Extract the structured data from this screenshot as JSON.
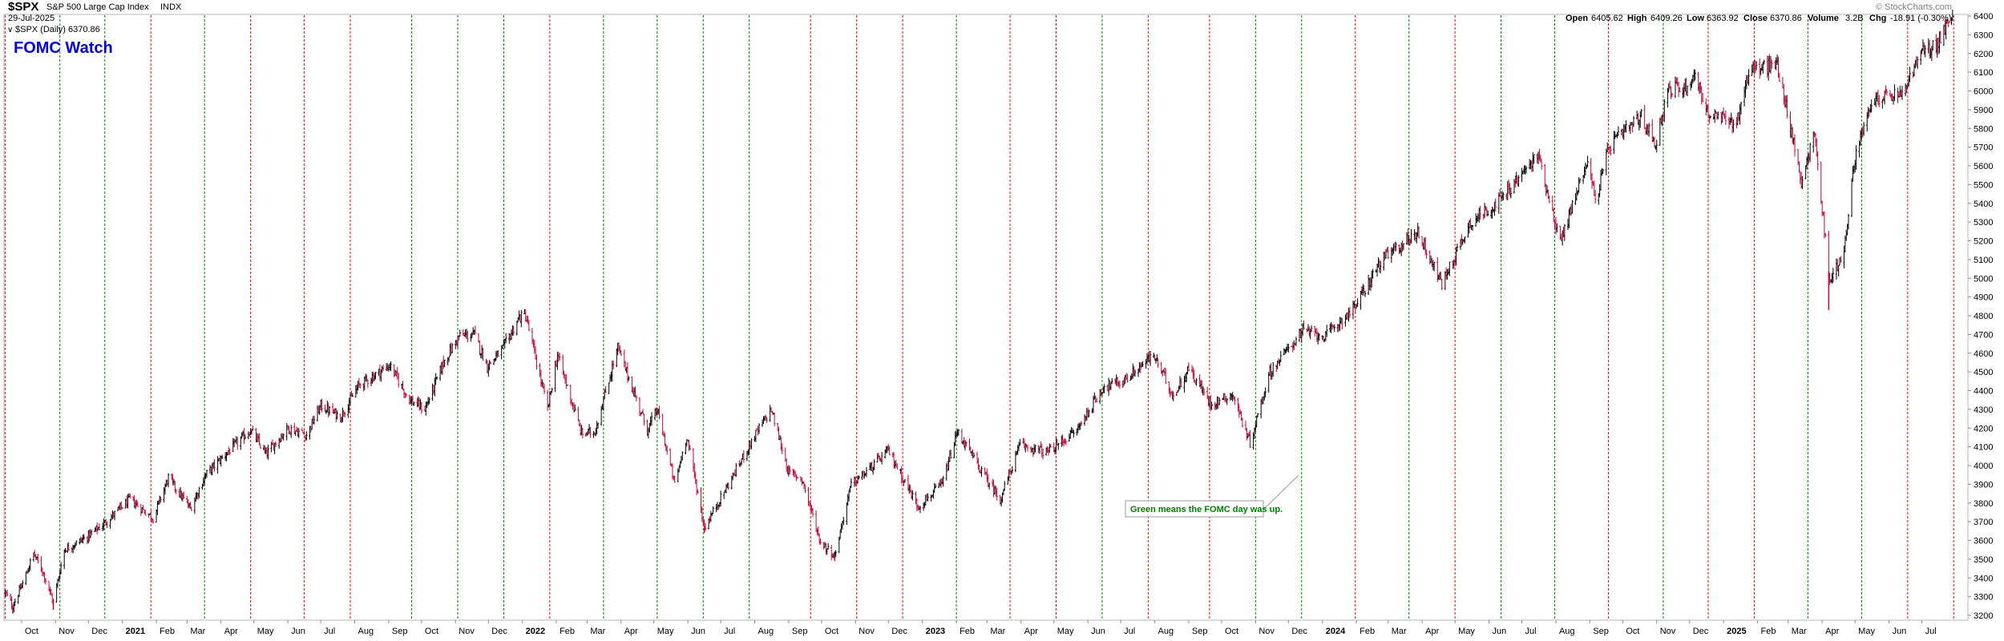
{
  "header": {
    "symbol": "$SPX",
    "description": "S&P 500 Large Cap Index",
    "exchange": "INDX",
    "date": "29-Jul-2025",
    "legend": "$SPX (Daily) 6370.86",
    "source": "© StockCharts.com",
    "ohlc": [
      {
        "label": "Open",
        "value": "6405.62"
      },
      {
        "label": "High",
        "value": "6409.26"
      },
      {
        "label": "Low",
        "value": "6363.92"
      },
      {
        "label": "Close",
        "value": "6370.86"
      },
      {
        "label": "Volume",
        "value": "3.2B"
      },
      {
        "label": "Chg",
        "value": "-18.91 (-0.30%)"
      }
    ]
  },
  "annotation": {
    "title": "FOMC Watch",
    "note": "Green means the FOMC day was up."
  },
  "colors": {
    "up_candle": "#000000",
    "down_candle": "#cc0033",
    "fomc_up": "#008000",
    "fomc_down": "#ff0000",
    "title": "#0000ee",
    "note_text": "#008000"
  },
  "chart_data": {
    "type": "line",
    "style": "daily OHLC price bars (black = up day, red = down day) with vertical dashed FOMC meeting lines",
    "ylim": [
      3200,
      6400
    ],
    "y_axis_position": "right",
    "y_ticks": [
      3200,
      3300,
      3400,
      3500,
      3600,
      3700,
      3800,
      3900,
      4000,
      4100,
      4200,
      4300,
      4400,
      4500,
      4600,
      4700,
      4800,
      4900,
      5000,
      5100,
      5200,
      5300,
      5400,
      5500,
      5600,
      5700,
      5800,
      5900,
      6000,
      6100,
      6200,
      6300,
      6400
    ],
    "x_range": [
      "2020-09-15",
      "2025-08-12"
    ],
    "x_ticks": [
      {
        "label": "Oct",
        "date": "2020-10-01",
        "year": false
      },
      {
        "label": "Nov",
        "date": "2020-11-01",
        "year": false
      },
      {
        "label": "Dec",
        "date": "2020-12-01",
        "year": false
      },
      {
        "label": "2021",
        "date": "2021-01-01",
        "year": true
      },
      {
        "label": "Feb",
        "date": "2021-02-01",
        "year": false
      },
      {
        "label": "Mar",
        "date": "2021-03-01",
        "year": false
      },
      {
        "label": "Apr",
        "date": "2021-04-01",
        "year": false
      },
      {
        "label": "May",
        "date": "2021-05-01",
        "year": false
      },
      {
        "label": "Jun",
        "date": "2021-06-01",
        "year": false
      },
      {
        "label": "Jul",
        "date": "2021-07-01",
        "year": false
      },
      {
        "label": "Aug",
        "date": "2021-08-01",
        "year": false
      },
      {
        "label": "Sep",
        "date": "2021-09-01",
        "year": false
      },
      {
        "label": "Oct",
        "date": "2021-10-01",
        "year": false
      },
      {
        "label": "Nov",
        "date": "2021-11-01",
        "year": false
      },
      {
        "label": "Dec",
        "date": "2021-12-01",
        "year": false
      },
      {
        "label": "2022",
        "date": "2022-01-01",
        "year": true
      },
      {
        "label": "Feb",
        "date": "2022-02-01",
        "year": false
      },
      {
        "label": "Mar",
        "date": "2022-03-01",
        "year": false
      },
      {
        "label": "Apr",
        "date": "2022-04-01",
        "year": false
      },
      {
        "label": "May",
        "date": "2022-05-01",
        "year": false
      },
      {
        "label": "Jun",
        "date": "2022-06-01",
        "year": false
      },
      {
        "label": "Jul",
        "date": "2022-07-01",
        "year": false
      },
      {
        "label": "Aug",
        "date": "2022-08-01",
        "year": false
      },
      {
        "label": "Sep",
        "date": "2022-09-01",
        "year": false
      },
      {
        "label": "Oct",
        "date": "2022-10-01",
        "year": false
      },
      {
        "label": "Nov",
        "date": "2022-11-01",
        "year": false
      },
      {
        "label": "Dec",
        "date": "2022-12-01",
        "year": false
      },
      {
        "label": "2023",
        "date": "2023-01-01",
        "year": true
      },
      {
        "label": "Feb",
        "date": "2023-02-01",
        "year": false
      },
      {
        "label": "Mar",
        "date": "2023-03-01",
        "year": false
      },
      {
        "label": "Apr",
        "date": "2023-04-01",
        "year": false
      },
      {
        "label": "May",
        "date": "2023-05-01",
        "year": false
      },
      {
        "label": "Jun",
        "date": "2023-06-01",
        "year": false
      },
      {
        "label": "Jul",
        "date": "2023-07-01",
        "year": false
      },
      {
        "label": "Aug",
        "date": "2023-08-01",
        "year": false
      },
      {
        "label": "Sep",
        "date": "2023-09-01",
        "year": false
      },
      {
        "label": "Oct",
        "date": "2023-10-01",
        "year": false
      },
      {
        "label": "Nov",
        "date": "2023-11-01",
        "year": false
      },
      {
        "label": "Dec",
        "date": "2023-12-01",
        "year": false
      },
      {
        "label": "2024",
        "date": "2024-01-01",
        "year": true
      },
      {
        "label": "Feb",
        "date": "2024-02-01",
        "year": false
      },
      {
        "label": "Mar",
        "date": "2024-03-01",
        "year": false
      },
      {
        "label": "Apr",
        "date": "2024-04-01",
        "year": false
      },
      {
        "label": "May",
        "date": "2024-05-01",
        "year": false
      },
      {
        "label": "Jun",
        "date": "2024-06-01",
        "year": false
      },
      {
        "label": "Jul",
        "date": "2024-07-01",
        "year": false
      },
      {
        "label": "Aug",
        "date": "2024-08-01",
        "year": false
      },
      {
        "label": "Sep",
        "date": "2024-09-01",
        "year": false
      },
      {
        "label": "Oct",
        "date": "2024-10-01",
        "year": false
      },
      {
        "label": "Nov",
        "date": "2024-11-01",
        "year": false
      },
      {
        "label": "Dec",
        "date": "2024-12-01",
        "year": false
      },
      {
        "label": "2025",
        "date": "2025-01-01",
        "year": true
      },
      {
        "label": "Feb",
        "date": "2025-02-01",
        "year": false
      },
      {
        "label": "Mar",
        "date": "2025-03-01",
        "year": false
      },
      {
        "label": "Apr",
        "date": "2025-04-01",
        "year": false
      },
      {
        "label": "May",
        "date": "2025-05-01",
        "year": false
      },
      {
        "label": "Jun",
        "date": "2025-06-01",
        "year": false
      },
      {
        "label": "Jul",
        "date": "2025-07-01",
        "year": false
      }
    ],
    "fomc_days": [
      {
        "date": "2020-09-16",
        "up": false
      },
      {
        "date": "2020-11-05",
        "up": true
      },
      {
        "date": "2020-12-16",
        "up": true
      },
      {
        "date": "2021-01-27",
        "up": false
      },
      {
        "date": "2021-03-17",
        "up": true
      },
      {
        "date": "2021-04-28",
        "up": false
      },
      {
        "date": "2021-06-16",
        "up": false
      },
      {
        "date": "2021-07-28",
        "up": false
      },
      {
        "date": "2021-09-22",
        "up": true
      },
      {
        "date": "2021-11-03",
        "up": true
      },
      {
        "date": "2021-12-15",
        "up": true
      },
      {
        "date": "2022-01-26",
        "up": false
      },
      {
        "date": "2022-03-16",
        "up": true
      },
      {
        "date": "2022-05-04",
        "up": true
      },
      {
        "date": "2022-06-15",
        "up": true
      },
      {
        "date": "2022-07-27",
        "up": true
      },
      {
        "date": "2022-09-21",
        "up": false
      },
      {
        "date": "2022-11-02",
        "up": false
      },
      {
        "date": "2022-12-14",
        "up": false
      },
      {
        "date": "2023-02-01",
        "up": true
      },
      {
        "date": "2023-03-22",
        "up": false
      },
      {
        "date": "2023-05-03",
        "up": false
      },
      {
        "date": "2023-06-14",
        "up": true
      },
      {
        "date": "2023-07-26",
        "up": false
      },
      {
        "date": "2023-09-20",
        "up": false
      },
      {
        "date": "2023-11-01",
        "up": true
      },
      {
        "date": "2023-12-13",
        "up": true
      },
      {
        "date": "2024-01-31",
        "up": false
      },
      {
        "date": "2024-03-20",
        "up": true
      },
      {
        "date": "2024-05-01",
        "up": false
      },
      {
        "date": "2024-06-12",
        "up": true
      },
      {
        "date": "2024-07-31",
        "up": true
      },
      {
        "date": "2024-09-18",
        "up": false
      },
      {
        "date": "2024-11-07",
        "up": true
      },
      {
        "date": "2024-12-18",
        "up": false
      },
      {
        "date": "2025-01-29",
        "up": false
      },
      {
        "date": "2025-03-19",
        "up": true
      },
      {
        "date": "2025-05-07",
        "up": true
      },
      {
        "date": "2025-06-18",
        "up": false
      },
      {
        "date": "2025-07-30",
        "up": false
      }
    ],
    "price_path": [
      [
        "2020-09-16",
        3320
      ],
      [
        "2020-09-23",
        3250
      ],
      [
        "2020-10-02",
        3370
      ],
      [
        "2020-10-12",
        3530
      ],
      [
        "2020-10-20",
        3440
      ],
      [
        "2020-10-30",
        3270
      ],
      [
        "2020-11-09",
        3550
      ],
      [
        "2020-11-30",
        3620
      ],
      [
        "2020-12-15",
        3690
      ],
      [
        "2021-01-08",
        3820
      ],
      [
        "2021-01-29",
        3720
      ],
      [
        "2021-02-12",
        3935
      ],
      [
        "2021-03-04",
        3770
      ],
      [
        "2021-03-18",
        3950
      ],
      [
        "2021-04-05",
        4060
      ],
      [
        "2021-04-28",
        4190
      ],
      [
        "2021-05-12",
        4060
      ],
      [
        "2021-06-01",
        4200
      ],
      [
        "2021-06-18",
        4165
      ],
      [
        "2021-07-01",
        4320
      ],
      [
        "2021-07-19",
        4260
      ],
      [
        "2021-08-05",
        4430
      ],
      [
        "2021-09-02",
        4535
      ],
      [
        "2021-09-20",
        4350
      ],
      [
        "2021-10-04",
        4300
      ],
      [
        "2021-10-21",
        4550
      ],
      [
        "2021-11-04",
        4690
      ],
      [
        "2021-11-18",
        4700
      ],
      [
        "2021-11-30",
        4530
      ],
      [
        "2021-12-14",
        4620
      ],
      [
        "2021-12-29",
        4790
      ],
      [
        "2022-01-04",
        4800
      ],
      [
        "2022-01-24",
        4300
      ],
      [
        "2022-02-02",
        4590
      ],
      [
        "2022-02-24",
        4170
      ],
      [
        "2022-03-08",
        4180
      ],
      [
        "2022-03-29",
        4630
      ],
      [
        "2022-04-25",
        4190
      ],
      [
        "2022-05-04",
        4300
      ],
      [
        "2022-05-20",
        3900
      ],
      [
        "2022-05-31",
        4160
      ],
      [
        "2022-06-16",
        3670
      ],
      [
        "2022-07-08",
        3900
      ],
      [
        "2022-07-29",
        4130
      ],
      [
        "2022-08-16",
        4300
      ],
      [
        "2022-09-01",
        3960
      ],
      [
        "2022-09-13",
        3930
      ],
      [
        "2022-09-30",
        3590
      ],
      [
        "2022-10-13",
        3520
      ],
      [
        "2022-10-28",
        3900
      ],
      [
        "2022-11-10",
        3960
      ],
      [
        "2022-12-01",
        4080
      ],
      [
        "2022-12-28",
        3780
      ],
      [
        "2023-01-19",
        3900
      ],
      [
        "2023-02-02",
        4180
      ],
      [
        "2023-02-24",
        3970
      ],
      [
        "2023-03-13",
        3820
      ],
      [
        "2023-03-31",
        4110
      ],
      [
        "2023-04-25",
        4070
      ],
      [
        "2023-05-22",
        4190
      ],
      [
        "2023-06-15",
        4420
      ],
      [
        "2023-07-03",
        4450
      ],
      [
        "2023-07-31",
        4590
      ],
      [
        "2023-08-18",
        4370
      ],
      [
        "2023-09-01",
        4520
      ],
      [
        "2023-09-21",
        4330
      ],
      [
        "2023-10-11",
        4380
      ],
      [
        "2023-10-27",
        4120
      ],
      [
        "2023-11-14",
        4500
      ],
      [
        "2023-12-14",
        4720
      ],
      [
        "2024-01-04",
        4690
      ],
      [
        "2024-01-31",
        4850
      ],
      [
        "2024-02-23",
        5090
      ],
      [
        "2024-03-28",
        5250
      ],
      [
        "2024-04-19",
        4970
      ],
      [
        "2024-05-15",
        5300
      ],
      [
        "2024-06-12",
        5420
      ],
      [
        "2024-07-16",
        5660
      ],
      [
        "2024-08-05",
        5190
      ],
      [
        "2024-08-30",
        5640
      ],
      [
        "2024-09-06",
        5410
      ],
      [
        "2024-09-19",
        5710
      ],
      [
        "2024-10-18",
        5860
      ],
      [
        "2024-10-31",
        5720
      ],
      [
        "2024-11-11",
        6000
      ],
      [
        "2024-11-29",
        6030
      ],
      [
        "2024-12-06",
        6090
      ],
      [
        "2024-12-18",
        5870
      ],
      [
        "2025-01-13",
        5830
      ],
      [
        "2025-01-24",
        6110
      ],
      [
        "2025-02-19",
        6140
      ],
      [
        "2025-03-13",
        5520
      ],
      [
        "2025-03-25",
        5770
      ],
      [
        "2025-04-08",
        4980
      ],
      [
        "2025-04-21",
        5150
      ],
      [
        "2025-05-02",
        5690
      ],
      [
        "2025-05-19",
        5960
      ],
      [
        "2025-06-13",
        5980
      ],
      [
        "2025-06-30",
        6200
      ],
      [
        "2025-07-15",
        6250
      ],
      [
        "2025-07-28",
        6400
      ],
      [
        "2025-07-29",
        6370.86
      ]
    ],
    "extremes": [
      {
        "date": "2020-09-23",
        "low": 3210
      },
      {
        "date": "2020-10-30",
        "low": 3230
      },
      {
        "date": "2022-06-16",
        "low": 3640
      },
      {
        "date": "2022-10-13",
        "low": 3490
      },
      {
        "date": "2025-04-07",
        "low": 4830
      }
    ]
  }
}
